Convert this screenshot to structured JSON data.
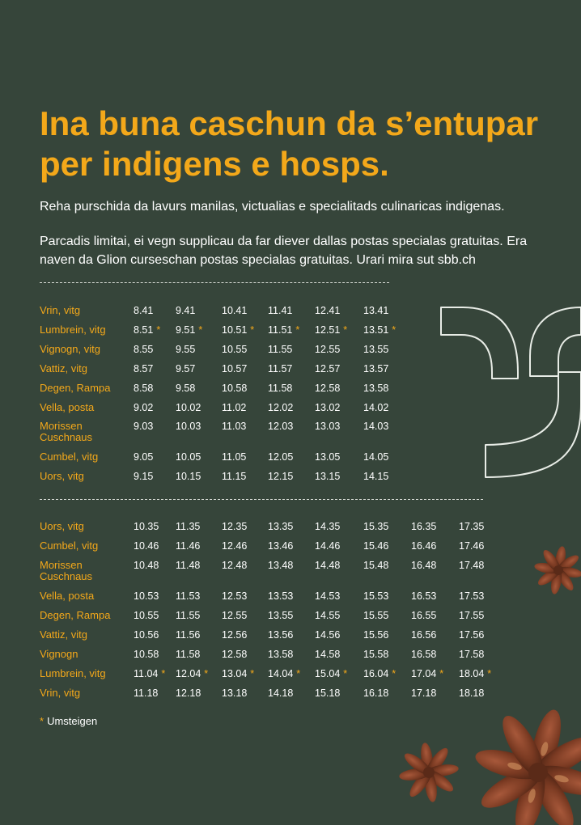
{
  "heading": "Ina buna caschun da s’entupar per indigens e hosps.",
  "intro": "Reha purschida da lavurs manilas, victualias e specialitads culinaricas indigenas.",
  "parking": "Parcadis limitai, ei vegn supplicau da far diever dallas postas specialas gratuitas. Era naven da Glion curseschan postas specialas gratuitas. Urari mira sut sbb.ch",
  "footnote": "Umsteigen",
  "star_symbol": "*",
  "colors": {
    "background": "#36453a",
    "accent": "#f3a81a",
    "text": "#ffffff"
  },
  "decorations": [
    "curly-bracket-outline-icon",
    "star-anise-icon"
  ],
  "timetable_1": [
    {
      "stop": "Vrin, vitg",
      "times": [
        "8.41",
        "9.41",
        "10.41",
        "11.41",
        "12.41",
        "13.41"
      ],
      "change": false
    },
    {
      "stop": "Lumbrein, vitg",
      "times": [
        "8.51",
        "9.51",
        "10.51",
        "11.51",
        "12.51",
        "13.51"
      ],
      "change": true
    },
    {
      "stop": "Vignogn, vitg",
      "times": [
        "8.55",
        "9.55",
        "10.55",
        "11.55",
        "12.55",
        "13.55"
      ],
      "change": false
    },
    {
      "stop": "Vattiz, vitg",
      "times": [
        "8.57",
        "9.57",
        "10.57",
        "11.57",
        "12.57",
        "13.57"
      ],
      "change": false
    },
    {
      "stop": "Degen, Rampa",
      "times": [
        "8.58",
        "9.58",
        "10.58",
        "11.58",
        "12.58",
        "13.58"
      ],
      "change": false
    },
    {
      "stop": "Vella, posta",
      "times": [
        "9.02",
        "10.02",
        "11.02",
        "12.02",
        "13.02",
        "14.02"
      ],
      "change": false
    },
    {
      "stop": "Morissen\nCuschnaus",
      "times": [
        "9.03",
        "10.03",
        "11.03",
        "12.03",
        "13.03",
        "14.03"
      ],
      "change": false
    },
    {
      "stop": "Cumbel, vitg",
      "times": [
        "9.05",
        "10.05",
        "11.05",
        "12.05",
        "13.05",
        "14.05"
      ],
      "change": false
    },
    {
      "stop": "Uors, vitg",
      "times": [
        "9.15",
        "10.15",
        "11.15",
        "12.15",
        "13.15",
        "14.15"
      ],
      "change": false
    }
  ],
  "timetable_2": [
    {
      "stop": "Uors, vitg",
      "times": [
        "10.35",
        "11.35",
        "12.35",
        "13.35",
        "14.35",
        "15.35",
        "16.35",
        "17.35"
      ],
      "change": false
    },
    {
      "stop": "Cumbel, vitg",
      "times": [
        "10.46",
        "11.46",
        "12.46",
        "13.46",
        "14.46",
        "15.46",
        "16.46",
        "17.46"
      ],
      "change": false
    },
    {
      "stop": "Morissen\nCuschnaus",
      "times": [
        "10.48",
        "11.48",
        "12.48",
        "13.48",
        "14.48",
        "15.48",
        "16.48",
        "17.48"
      ],
      "change": false
    },
    {
      "stop": "Vella, posta",
      "times": [
        "10.53",
        "11.53",
        "12.53",
        "13.53",
        "14.53",
        "15.53",
        "16.53",
        "17.53"
      ],
      "change": false
    },
    {
      "stop": "Degen, Rampa",
      "times": [
        "10.55",
        "11.55",
        "12.55",
        "13.55",
        "14.55",
        "15.55",
        "16.55",
        "17.55"
      ],
      "change": false
    },
    {
      "stop": "Vattiz, vitg",
      "times": [
        "10.56",
        "11.56",
        "12.56",
        "13.56",
        "14.56",
        "15.56",
        "16.56",
        "17.56"
      ],
      "change": false
    },
    {
      "stop": "Vignogn",
      "times": [
        "10.58",
        "11.58",
        "12.58",
        "13.58",
        "14.58",
        "15.58",
        "16.58",
        "17.58"
      ],
      "change": false
    },
    {
      "stop": "Lumbrein, vitg",
      "times": [
        "11.04",
        "12.04",
        "13.04",
        "14.04",
        "15.04",
        "16.04",
        "17.04",
        "18.04"
      ],
      "change": true
    },
    {
      "stop": "Vrin, vitg",
      "times": [
        "11.18",
        "12.18",
        "13.18",
        "14.18",
        "15.18",
        "16.18",
        "17.18",
        "18.18"
      ],
      "change": false
    }
  ]
}
